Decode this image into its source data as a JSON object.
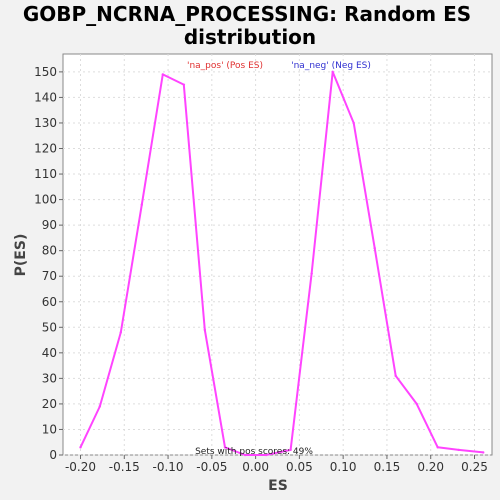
{
  "chart_data": {
    "type": "line",
    "title_line1": "GOBP_NCRNA_PROCESSING: Random ES",
    "title_line2": "distribution",
    "xlabel": "ES",
    "ylabel": "P(ES)",
    "xlim": [
      -0.22,
      0.27
    ],
    "ylim": [
      0,
      157
    ],
    "x_ticks": [
      "-0.20",
      "-0.15",
      "-0.10",
      "-0.05",
      "0.00",
      "0.05",
      "0.10",
      "0.15",
      "0.20",
      "0.25"
    ],
    "x_tick_values": [
      -0.2,
      -0.15,
      -0.1,
      -0.05,
      0.0,
      0.05,
      0.1,
      0.15,
      0.2,
      0.25
    ],
    "y_ticks": [
      0,
      10,
      20,
      30,
      40,
      50,
      60,
      70,
      80,
      90,
      100,
      110,
      120,
      130,
      140,
      150
    ],
    "grid": true,
    "line_color": "#ff44ff",
    "series": [
      {
        "name": "",
        "x": [
          -0.2,
          -0.178,
          -0.154,
          -0.13,
          -0.106,
          -0.082,
          -0.058,
          -0.035,
          -0.012,
          0.012,
          0.04,
          0.064,
          0.088,
          0.112,
          0.136,
          0.16,
          0.184,
          0.208,
          0.232,
          0.26
        ],
        "values": [
          3,
          19,
          48,
          98,
          149,
          145,
          49,
          3,
          0,
          0,
          2,
          71,
          150,
          130,
          81,
          31,
          20,
          3,
          2,
          1
        ]
      }
    ],
    "legend": [
      {
        "label": "'na_pos' (Pos ES)",
        "color": "#e03030"
      },
      {
        "label": "'na_neg' (Neg ES)",
        "color": "#3030d0"
      }
    ],
    "annotation": "Sets with pos scores: 49%"
  }
}
